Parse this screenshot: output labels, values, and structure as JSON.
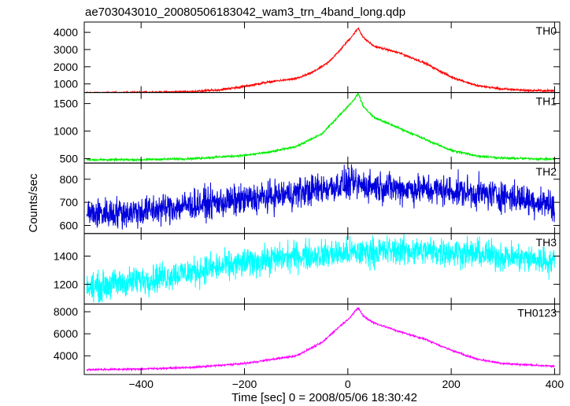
{
  "chart_data": {
    "type": "line",
    "title": "ae703043010_20080506183042_wam3_trn_4band_long.qdp",
    "xlabel": "Time [sec] 0 = 2008/05/06 18:30:42",
    "ylabel": "Counts/sec",
    "xlim": [
      -510,
      410
    ],
    "x_ticks": [
      -400,
      -200,
      0,
      200,
      400
    ],
    "x_tick_labels": [
      "−400",
      "−200",
      "0",
      "200",
      "400"
    ],
    "grid": false,
    "panels": [
      {
        "name": "TH0",
        "color": "#ff0000",
        "ylim": [
          500,
          4600
        ],
        "y_ticks": [
          1000,
          2000,
          3000,
          4000
        ],
        "y_tick_labels": [
          "1000",
          "2000",
          "3000",
          "4000"
        ],
        "noise": 50,
        "points": [
          [
            -505,
            480
          ],
          [
            -400,
            500
          ],
          [
            -300,
            560
          ],
          [
            -250,
            650
          ],
          [
            -200,
            850
          ],
          [
            -160,
            1080
          ],
          [
            -130,
            1200
          ],
          [
            -100,
            1300
          ],
          [
            -70,
            1650
          ],
          [
            -40,
            2200
          ],
          [
            -20,
            2800
          ],
          [
            0,
            3500
          ],
          [
            10,
            3850
          ],
          [
            20,
            4250
          ],
          [
            30,
            3700
          ],
          [
            50,
            3200
          ],
          [
            100,
            2800
          ],
          [
            150,
            2200
          ],
          [
            200,
            1400
          ],
          [
            250,
            900
          ],
          [
            300,
            700
          ],
          [
            350,
            620
          ],
          [
            400,
            600
          ]
        ]
      },
      {
        "name": "TH1",
        "color": "#00ee00",
        "ylim": [
          420,
          1700
        ],
        "y_ticks": [
          500,
          1000,
          1500
        ],
        "y_tick_labels": [
          "500",
          "1000",
          "1500"
        ],
        "noise": 16,
        "points": [
          [
            -505,
            480
          ],
          [
            -400,
            480
          ],
          [
            -300,
            500
          ],
          [
            -200,
            560
          ],
          [
            -150,
            620
          ],
          [
            -100,
            720
          ],
          [
            -50,
            950
          ],
          [
            -20,
            1250
          ],
          [
            0,
            1450
          ],
          [
            10,
            1550
          ],
          [
            20,
            1680
          ],
          [
            30,
            1450
          ],
          [
            50,
            1250
          ],
          [
            100,
            1050
          ],
          [
            150,
            850
          ],
          [
            200,
            650
          ],
          [
            250,
            550
          ],
          [
            300,
            510
          ],
          [
            400,
            490
          ]
        ]
      },
      {
        "name": "TH2",
        "color": "#0000dd",
        "ylim": [
          565,
          870
        ],
        "y_ticks": [
          600,
          700,
          800
        ],
        "y_tick_labels": [
          "600",
          "700",
          "800"
        ],
        "noise": 55,
        "points": [
          [
            -505,
            650
          ],
          [
            -400,
            660
          ],
          [
            -300,
            690
          ],
          [
            -200,
            710
          ],
          [
            -100,
            740
          ],
          [
            0,
            780
          ],
          [
            50,
            770
          ],
          [
            100,
            760
          ],
          [
            200,
            750
          ],
          [
            300,
            730
          ],
          [
            400,
            690
          ]
        ]
      },
      {
        "name": "TH3",
        "color": "#00ffff",
        "ylim": [
          1060,
          1560
        ],
        "y_ticks": [
          1200,
          1400
        ],
        "y_tick_labels": [
          "1200",
          "1400"
        ],
        "noise": 85,
        "points": [
          [
            -505,
            1170
          ],
          [
            -400,
            1230
          ],
          [
            -300,
            1290
          ],
          [
            -200,
            1350
          ],
          [
            -100,
            1400
          ],
          [
            0,
            1420
          ],
          [
            100,
            1440
          ],
          [
            200,
            1430
          ],
          [
            300,
            1400
          ],
          [
            400,
            1360
          ]
        ]
      },
      {
        "name": "TH0123",
        "color": "#ff00ff",
        "ylim": [
          2300,
          8700
        ],
        "y_ticks": [
          4000,
          6000,
          8000
        ],
        "y_tick_labels": [
          "4000",
          "6000",
          "8000"
        ],
        "noise": 70,
        "points": [
          [
            -505,
            2750
          ],
          [
            -400,
            2800
          ],
          [
            -300,
            2950
          ],
          [
            -200,
            3300
          ],
          [
            -150,
            3650
          ],
          [
            -100,
            4000
          ],
          [
            -50,
            5200
          ],
          [
            -20,
            6500
          ],
          [
            0,
            7300
          ],
          [
            10,
            7800
          ],
          [
            20,
            8350
          ],
          [
            30,
            7600
          ],
          [
            50,
            7000
          ],
          [
            100,
            6200
          ],
          [
            150,
            5500
          ],
          [
            200,
            4500
          ],
          [
            250,
            3700
          ],
          [
            300,
            3300
          ],
          [
            400,
            3050
          ]
        ]
      }
    ]
  }
}
